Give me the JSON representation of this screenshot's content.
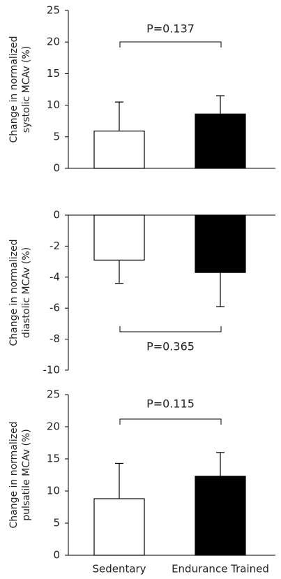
{
  "chart_data": [
    {
      "type": "bar",
      "ylabel": [
        "Change in normalized",
        "systolic MCAv (%)"
      ],
      "annotation": "P=0.137",
      "categories": [
        null,
        null
      ],
      "values": [
        5.9,
        8.6
      ],
      "errors": [
        4.6,
        2.9
      ],
      "colors": [
        "#ffffff",
        "#000000"
      ],
      "ylim": [
        0,
        25
      ],
      "yticks": [
        0,
        5,
        10,
        15,
        20,
        25
      ]
    },
    {
      "type": "bar",
      "ylabel": [
        "Change in normalized",
        "diastolic MCAv (%)"
      ],
      "annotation": "P=0.365",
      "categories": [
        null,
        null
      ],
      "values": [
        -2.9,
        -3.7
      ],
      "errors": [
        1.5,
        2.2
      ],
      "colors": [
        "#ffffff",
        "#000000"
      ],
      "ylim": [
        -10,
        0
      ],
      "yticks": [
        0,
        -2,
        -4,
        -6,
        -8,
        -10
      ]
    },
    {
      "type": "bar",
      "ylabel": [
        "Change in normalized",
        "pulsatile MCAv (%)"
      ],
      "annotation": "P=0.115",
      "categories": [
        "Sedentary",
        "Endurance Trained"
      ],
      "values": [
        8.8,
        12.3
      ],
      "errors": [
        5.5,
        3.7
      ],
      "colors": [
        "#ffffff",
        "#000000"
      ],
      "ylim": [
        0,
        25
      ],
      "yticks": [
        0,
        5,
        10,
        15,
        20,
        25
      ]
    }
  ]
}
